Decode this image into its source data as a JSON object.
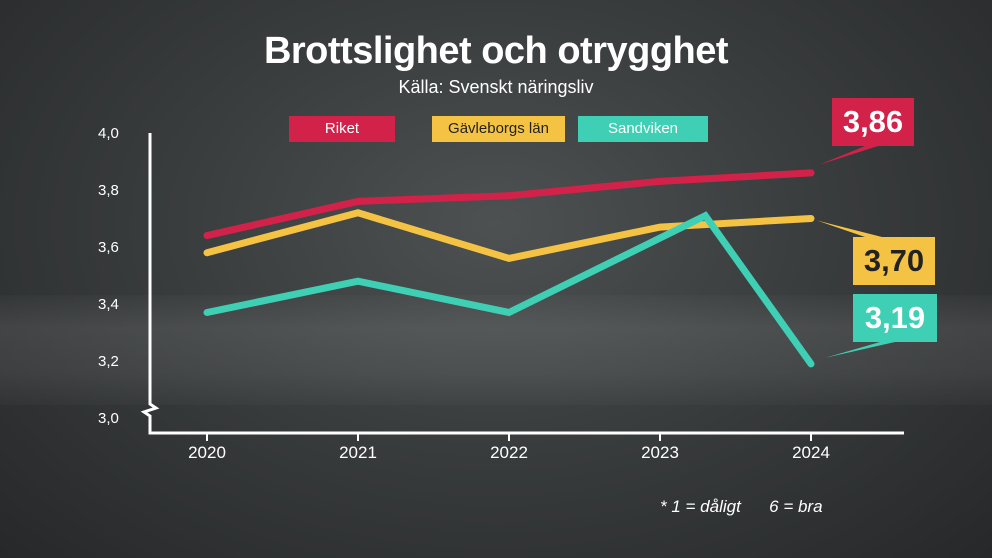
{
  "header": {
    "title": "Brottslighet och otrygghet",
    "source": "Källa: Svenskt näringsliv"
  },
  "footnote": "* 1 = dåligt      6 = bra",
  "colors": {
    "riket": "#d3224a",
    "gavleborg": "#f5c344",
    "sandviken": "#3fcfb4",
    "axis": "#ffffff"
  },
  "end_labels": [
    "3,86",
    "3,70",
    "3,19"
  ],
  "chart_data": {
    "type": "line",
    "title": "Brottslighet och otrygghet",
    "subtitle": "Källa: Svenskt näringsliv",
    "x": [
      2020,
      2021,
      2022,
      2023,
      2024
    ],
    "xticks": [
      "2020",
      "2021",
      "2022",
      "2023",
      "2024"
    ],
    "yticks": [
      "3,0",
      "3,2",
      "3,4",
      "3,6",
      "3,8",
      "4,0"
    ],
    "ylim": [
      3.0,
      4.0
    ],
    "legend": "top",
    "grid": false,
    "series": [
      {
        "name": "Riket",
        "color": "#d3224a",
        "points": [
          [
            2020.0,
            3.64
          ],
          [
            2021.0,
            3.76
          ],
          [
            2022.0,
            3.78
          ],
          [
            2023.0,
            3.83
          ],
          [
            2024.0,
            3.86
          ]
        ]
      },
      {
        "name": "Gävleborgs län",
        "color": "#f5c344",
        "points": [
          [
            2020.0,
            3.58
          ],
          [
            2021.0,
            3.72
          ],
          [
            2022.0,
            3.56
          ],
          [
            2023.0,
            3.67
          ],
          [
            2024.0,
            3.7
          ]
        ]
      },
      {
        "name": "Sandviken",
        "color": "#3fcfb4",
        "points": [
          [
            2020.0,
            3.37
          ],
          [
            2021.0,
            3.48
          ],
          [
            2022.0,
            3.37
          ],
          [
            2023.3,
            3.71
          ],
          [
            2024.0,
            3.19
          ]
        ]
      }
    ]
  }
}
